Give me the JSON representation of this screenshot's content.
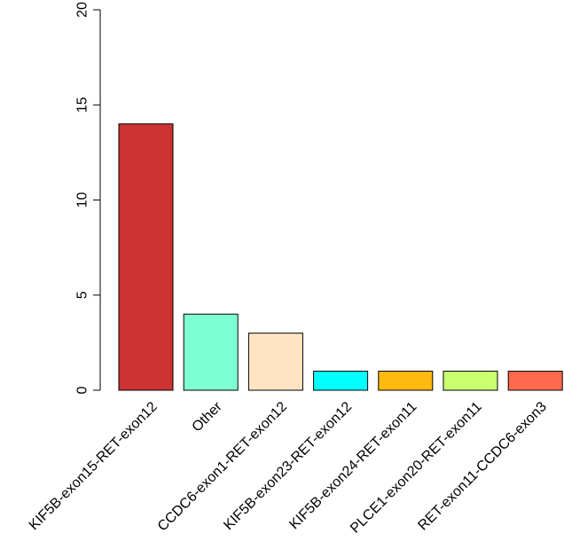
{
  "chart_data": {
    "type": "bar",
    "categories": [
      "KIF5B-exon15-RET-exon12",
      "Other",
      "CCDC6-exon1-RET-exon12",
      "KIF5B-exon23-RET-exon12",
      "KIF5B-exon24-RET-exon11",
      "PLCE1-exon20-RET-exon11",
      "RET-exon11-CCDC6-exon3"
    ],
    "values": [
      14,
      4,
      3,
      1,
      1,
      1,
      1
    ],
    "colors": [
      "#CD3333",
      "#7FFFD4",
      "#FFE4C4",
      "#00FFFF",
      "#FFB90F",
      "#CAFF70",
      "#FF6A4E"
    ],
    "ylim": [
      0,
      20
    ],
    "yticks": [
      0,
      5,
      10,
      15,
      20
    ],
    "title": "",
    "xlabel": "",
    "ylabel": "",
    "grid": false,
    "legend": "none"
  }
}
